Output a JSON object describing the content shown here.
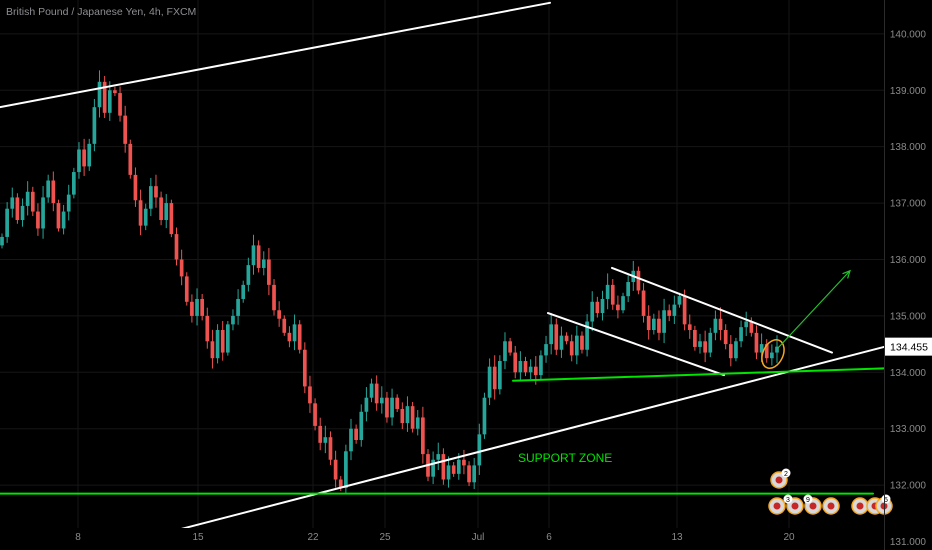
{
  "header": {
    "symbol_title": "British Pound / Japanese Yen, 4h, FXCM"
  },
  "colors": {
    "background": "#000000",
    "grid": "#161616",
    "candle_up": "#26a69a",
    "candle_down": "#ef5350",
    "trendline_white": "#ffffff",
    "support_green": "#00e400",
    "projection_arrow": "#26c02f",
    "highlight_ellipse": "#f5a623",
    "price_tag_bg": "#ffffff",
    "axis_text": "#8a8a8a"
  },
  "chart_data": {
    "type": "candlestick",
    "title": "British Pound / Japanese Yen, 4h, FXCM",
    "ylim": [
      130.85,
      140.6
    ],
    "y_ticks": [
      "140.000",
      "139.000",
      "138.000",
      "137.000",
      "136.000",
      "135.000",
      "134.000",
      "133.000",
      "132.000",
      "131.000"
    ],
    "x_ticks": [
      "8",
      "15",
      "22",
      "25",
      "Jul",
      "6",
      "13",
      "20"
    ],
    "last_price": "134.455",
    "annotations": [
      {
        "type": "label",
        "text": "SUPPORT ZONE"
      },
      {
        "type": "horizontal_line",
        "name": "support zone",
        "price": 131.85
      },
      {
        "type": "trendline",
        "name": "upper channel",
        "from": 138.7,
        "to": 140.55
      },
      {
        "type": "trendline",
        "name": "rising support",
        "from": 130.85,
        "to": 134.45
      },
      {
        "type": "trendline",
        "name": "flag top",
        "from": 135.85,
        "to": 134.35
      },
      {
        "type": "trendline",
        "name": "flag bottom",
        "from": 135.05,
        "to": 133.95
      },
      {
        "type": "trendline",
        "name": "neckline support",
        "from": 133.85,
        "to": 134.07
      },
      {
        "type": "arrow",
        "name": "bullish projection",
        "to": 135.8
      }
    ],
    "event_badges": [
      "2",
      "3",
      "9",
      "5"
    ],
    "series": [
      {
        "name": "",
        "values": [
          136.4,
          136.9,
          137.1,
          136.7,
          136.95,
          137.2,
          136.85,
          136.55,
          137.1,
          137.4,
          137.0,
          136.55,
          136.85,
          137.15,
          137.55,
          137.95,
          137.65,
          138.05,
          138.7,
          139.15,
          138.6,
          139.0,
          138.95,
          138.55,
          138.05,
          137.5,
          137.05,
          136.6,
          136.9,
          137.3,
          137.1,
          136.7,
          137.0,
          136.45,
          136.0,
          135.7,
          135.25,
          135.0,
          135.3,
          135.0,
          134.55,
          134.25,
          134.75,
          134.35,
          134.85,
          135.0,
          135.3,
          135.55,
          135.9,
          136.25,
          135.85,
          136.0,
          135.55,
          135.1,
          134.95,
          134.7,
          134.55,
          134.85,
          134.4,
          133.75,
          133.45,
          133.05,
          132.75,
          132.85,
          132.45,
          132.1,
          131.95,
          132.6,
          133.0,
          132.8,
          133.3,
          133.55,
          133.8,
          133.45,
          133.55,
          133.2,
          133.55,
          133.35,
          133.1,
          133.4,
          133.0,
          133.2,
          132.55,
          132.15,
          132.45,
          132.55,
          132.1,
          132.35,
          132.2,
          132.45,
          132.35,
          132.05,
          132.35,
          132.9,
          133.55,
          134.1,
          133.7,
          134.2,
          134.55,
          134.35,
          134.0,
          134.2,
          134.0,
          134.1,
          133.95,
          134.3,
          134.5,
          134.85,
          134.4,
          134.65,
          134.55,
          134.3,
          134.65,
          134.4,
          134.9,
          135.25,
          135.05,
          135.3,
          135.55,
          135.2,
          135.1,
          135.35,
          135.6,
          135.8,
          135.45,
          135.0,
          134.75,
          134.95,
          134.7,
          135.1,
          135.0,
          135.2,
          135.35,
          134.85,
          134.75,
          134.45,
          134.55,
          134.35,
          134.7,
          134.95,
          134.75,
          134.5,
          134.25,
          134.55,
          134.8,
          134.9,
          134.7,
          134.35,
          134.5,
          134.25,
          134.35,
          134.455
        ]
      }
    ]
  }
}
